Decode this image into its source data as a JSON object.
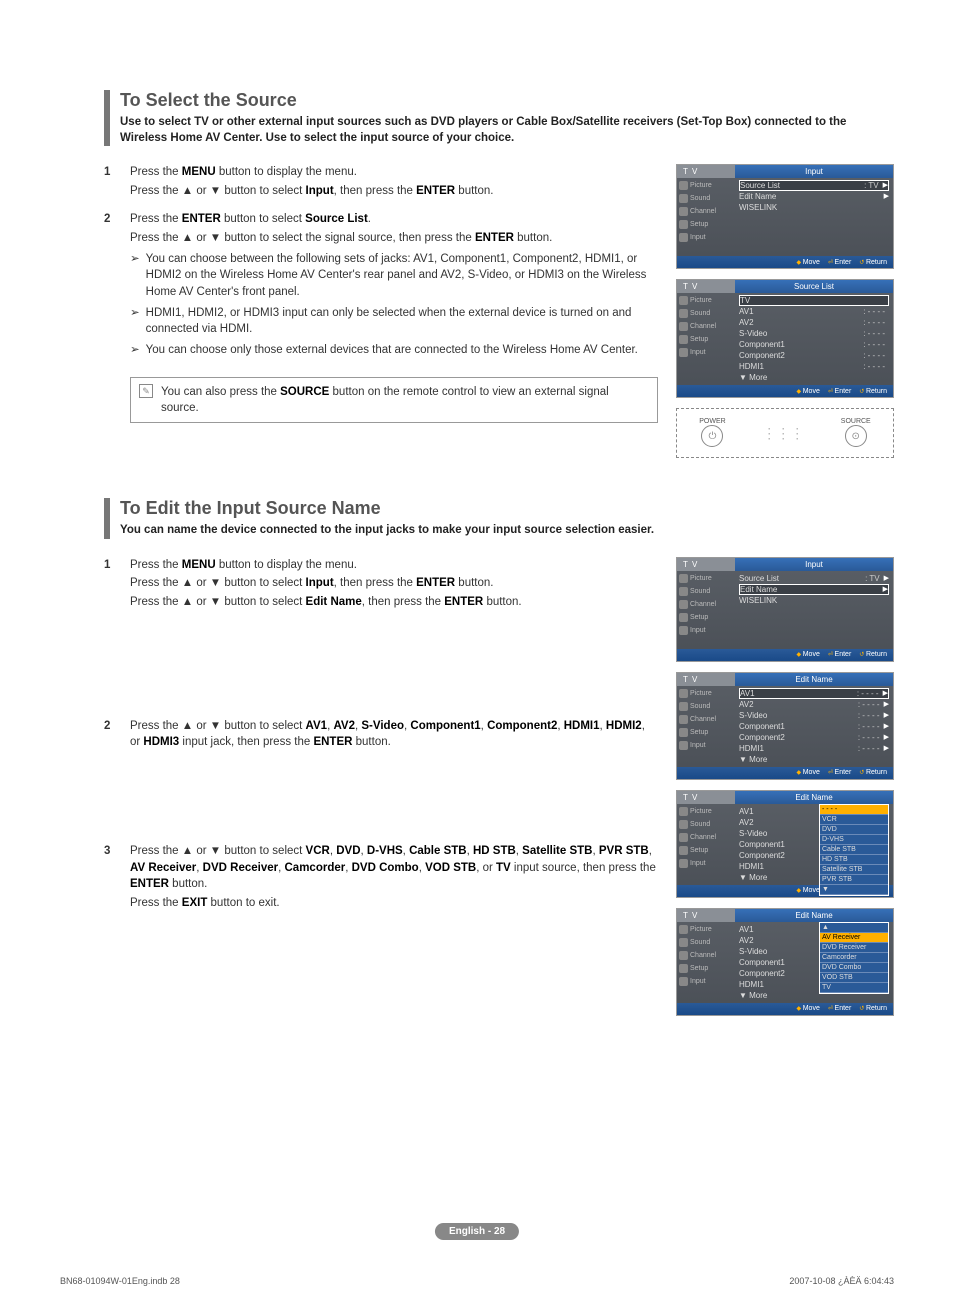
{
  "section1": {
    "title": "To Select the Source",
    "desc": "Use to select TV or other external input sources such as DVD players or Cable Box/Satellite receivers (Set-Top Box) connected to the  Wireless Home AV Center. Use to select the input source of your choice.",
    "steps": [
      {
        "num": "1",
        "lines": [
          "Press the <b>MENU</b> button to display the menu.",
          "Press the ▲ or ▼ button to select <b>Input</b>, then press the <b>ENTER</b> button."
        ]
      },
      {
        "num": "2",
        "lines": [
          "Press the <b>ENTER</b> button to select <b>Source List</b>.",
          "Press the ▲ or ▼ button to select the signal source, then press the <b>ENTER</b> button."
        ],
        "subs": [
          "You can choose between the following sets of jacks: AV1, Component1, Component2, HDMI1, or HDMI2 on the  Wireless Home AV Center's rear panel and AV2, S-Video, or HDMI3 on the Wireless Home AV Center's front panel.",
          "HDMI1, HDMI2, or HDMI3 input can only be selected when the external device is turned on and connected via HDMI.",
          "You can choose only those external devices that are connected to the Wireless Home AV Center."
        ]
      }
    ],
    "note": "You can also press the <b>SOURCE</b> button on the remote control to view an external signal source."
  },
  "section2": {
    "title": "To Edit the Input Source Name",
    "desc": "You can name the device connected to the input jacks to make your input source selection easier.",
    "steps": [
      {
        "num": "1",
        "lines": [
          "Press the <b>MENU</b> button to display the menu.",
          "Press the ▲ or ▼ button to select <b>Input</b>, then press the <b>ENTER</b> button.",
          "Press the ▲ or ▼ button to select <b>Edit Name</b>, then press the <b>ENTER</b> button."
        ]
      },
      {
        "num": "2",
        "lines": [
          "Press the ▲ or ▼ button to select <b>AV1</b>, <b>AV2</b>, <b>S-Video</b>, <b>Component1</b>, <b>Component2</b>, <b>HDMI1</b>, <b>HDMI2</b>, or <b>HDMI3</b> input jack, then press the <b>ENTER</b> button."
        ]
      },
      {
        "num": "3",
        "lines": [
          "Press the ▲ or ▼ button to select <b>VCR</b>, <b>DVD</b>, <b>D-VHS</b>, <b>Cable STB</b>, <b>HD STB</b>, <b>Satellite STB</b>, <b>PVR STB</b>, <b>AV Receiver</b>, <b>DVD Receiver</b>, <b>Camcorder</b>, <b>DVD Combo</b>, <b>VOD STB</b>, or <b>TV</b> input source, then press the <b>ENTER</b> button.",
          "Press the <b>EXIT</b> button to exit."
        ]
      }
    ]
  },
  "osd": {
    "tv": "T V",
    "side": [
      "Picture",
      "Sound",
      "Channel",
      "Setup",
      "Input"
    ],
    "foot": {
      "move": "Move",
      "enter": "Enter",
      "return": "Return"
    },
    "input_title": "Input",
    "input_rows": [
      {
        "label": "Source List",
        "val": ": TV",
        "sel": true,
        "chev": true
      },
      {
        "label": "Edit Name",
        "val": "",
        "sel": false,
        "chev": true
      },
      {
        "label": "WISELINK",
        "val": "",
        "sel": false,
        "chev": false
      }
    ],
    "srclist_title": "Source List",
    "srclist_rows": [
      {
        "label": "TV",
        "val": "",
        "sel": true
      },
      {
        "label": "AV1",
        "val": ": - - - -"
      },
      {
        "label": "AV2",
        "val": ": - - - -"
      },
      {
        "label": "S-Video",
        "val": ": - - - -"
      },
      {
        "label": "Component1",
        "val": ": - - - -"
      },
      {
        "label": "Component2",
        "val": ": - - - -"
      },
      {
        "label": "HDMI1",
        "val": ": - - - -"
      },
      {
        "label": "▼ More",
        "val": ""
      }
    ],
    "input2_rows": [
      {
        "label": "Source List",
        "val": ":   TV",
        "chev": true
      },
      {
        "label": "Edit Name",
        "val": "",
        "sel": true,
        "chev": true
      },
      {
        "label": "WISELINK",
        "val": ""
      }
    ],
    "editname_title": "Edit Name",
    "edit_rows": [
      {
        "label": "AV1",
        "val": ": - - - -",
        "sel": true,
        "chev": true
      },
      {
        "label": "AV2",
        "val": ": - - - -",
        "chev": true
      },
      {
        "label": "S-Video",
        "val": ": - - - -",
        "chev": true
      },
      {
        "label": "Component1",
        "val": ": - - - -",
        "chev": true
      },
      {
        "label": "Component2",
        "val": ": - - - -",
        "chev": true
      },
      {
        "label": "HDMI1",
        "val": ": - - - -",
        "chev": true
      },
      {
        "label": "▼ More",
        "val": ""
      }
    ],
    "popup1": [
      "- - - -",
      "VCR",
      "DVD",
      "D-VHS",
      "Cable STB",
      "HD STB",
      "Satellite STB",
      "PVR STB",
      "▼"
    ],
    "popup1_sel": 0,
    "popup2": [
      "▲",
      "AV Receiver",
      "DVD Receiver",
      "Camcorder",
      "DVD Combo",
      "VOD STB",
      "TV"
    ],
    "popup2_sel": 1,
    "remote": {
      "power": "POWER",
      "source": "SOURCE"
    }
  },
  "footer": {
    "badge": "English - 28",
    "file": "BN68-01094W-01Eng.indb   28",
    "date": "2007-10-08   ¿ÀÈÄ 6:04:43"
  }
}
